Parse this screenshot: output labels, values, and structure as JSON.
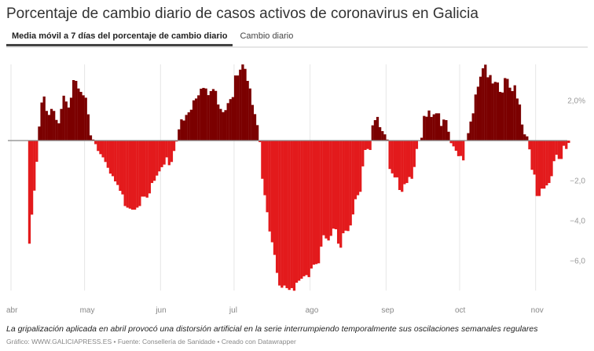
{
  "header": {
    "title": "Porcentaje de cambio diario de casos activos de coronavirus en Galicia"
  },
  "tabs": [
    {
      "label": "Media móvil a 7 días del porcentaje de cambio diario",
      "active": true
    },
    {
      "label": "Cambio diario",
      "active": false
    }
  ],
  "footer": {
    "note": "La gripalización aplicada en abril provocó una distorsión artificial en la serie interrumpiendo temporalmente sus oscilaciones semanales regulares",
    "credit": "Gráfico: WWW.GALICIAPRESS.ES • Fuente: Consellería de Sanidade • Creado con Datawrapper"
  },
  "chart_data": {
    "type": "bar",
    "title": "Porcentaje de cambio diario de casos activos de coronavirus en Galicia",
    "xlabel": "",
    "ylabel": "",
    "ylim": [
      -7.6,
      3.9
    ],
    "grid": {
      "x": true,
      "y": false
    },
    "colors": {
      "positive": "#7b0000",
      "negative": "#e31a1c",
      "zero_line": "#888888"
    },
    "x_ticks": [
      {
        "label": "abr",
        "date": "04-01"
      },
      {
        "label": "may",
        "date": "05-01"
      },
      {
        "label": "jun",
        "date": "06-01"
      },
      {
        "label": "jul",
        "date": "07-01"
      },
      {
        "label": "ago",
        "date": "08-01"
      },
      {
        "label": "sep",
        "date": "09-01"
      },
      {
        "label": "oct",
        "date": "10-01"
      },
      {
        "label": "nov",
        "date": "11-01"
      }
    ],
    "y_ticks": [
      {
        "value": 2,
        "label": "2,0%"
      },
      {
        "value": -2,
        "label": "−2,0"
      },
      {
        "value": -4,
        "label": "−4,0"
      },
      {
        "value": -6,
        "label": "−6,0"
      }
    ],
    "points": [
      [
        "04-08",
        -5.15
      ],
      [
        "04-09",
        -3.7
      ],
      [
        "04-10",
        -2.5
      ],
      [
        "04-11",
        -1.06
      ],
      [
        "04-12",
        0.7
      ],
      [
        "04-13",
        1.9
      ],
      [
        "04-14",
        2.2
      ],
      [
        "04-15",
        1.48
      ],
      [
        "04-16",
        1.28
      ],
      [
        "04-17",
        1.58
      ],
      [
        "04-18",
        1.48
      ],
      [
        "04-19",
        1.03
      ],
      [
        "04-20",
        0.86
      ],
      [
        "04-21",
        1.58
      ],
      [
        "04-22",
        2.24
      ],
      [
        "04-23",
        1.95
      ],
      [
        "04-24",
        1.65
      ],
      [
        "04-25",
        2.14
      ],
      [
        "04-26",
        3.02
      ],
      [
        "04-27",
        2.98
      ],
      [
        "04-28",
        2.6
      ],
      [
        "04-29",
        2.43
      ],
      [
        "04-30",
        2.26
      ],
      [
        "05-01",
        2.14
      ],
      [
        "05-02",
        1.31
      ],
      [
        "05-03",
        0.26
      ],
      [
        "05-04",
        0.05
      ],
      [
        "05-05",
        -0.18
      ],
      [
        "05-06",
        -0.52
      ],
      [
        "05-07",
        -0.68
      ],
      [
        "05-08",
        -0.84
      ],
      [
        "05-09",
        -1.07
      ],
      [
        "05-10",
        -1.36
      ],
      [
        "05-11",
        -1.65
      ],
      [
        "05-12",
        -1.78
      ],
      [
        "05-13",
        -2.04
      ],
      [
        "05-14",
        -2.22
      ],
      [
        "05-15",
        -2.51
      ],
      [
        "05-16",
        -2.69
      ],
      [
        "05-17",
        -3.27
      ],
      [
        "05-18",
        -3.35
      ],
      [
        "05-19",
        -3.4
      ],
      [
        "05-20",
        -3.45
      ],
      [
        "05-21",
        -3.45
      ],
      [
        "05-22",
        -3.35
      ],
      [
        "05-23",
        -3.27
      ],
      [
        "05-24",
        -2.8
      ],
      [
        "05-25",
        -2.8
      ],
      [
        "05-26",
        -2.85
      ],
      [
        "05-27",
        -2.64
      ],
      [
        "05-28",
        -2.12
      ],
      [
        "05-29",
        -2.01
      ],
      [
        "05-30",
        -1.75
      ],
      [
        "05-31",
        -1.54
      ],
      [
        "06-01",
        -1.33
      ],
      [
        "06-02",
        -1.2
      ],
      [
        "06-03",
        -0.84
      ],
      [
        "06-04",
        -1.23
      ],
      [
        "06-05",
        -1.07
      ],
      [
        "06-06",
        -0.52
      ],
      [
        "06-07",
        -0.05
      ],
      [
        "06-08",
        0.56
      ],
      [
        "06-09",
        1.06
      ],
      [
        "06-10",
        1.0
      ],
      [
        "06-11",
        1.28
      ],
      [
        "06-12",
        1.41
      ],
      [
        "06-13",
        1.54
      ],
      [
        "06-14",
        2.01
      ],
      [
        "06-15",
        2.1
      ],
      [
        "06-16",
        2.26
      ],
      [
        "06-17",
        2.59
      ],
      [
        "06-18",
        2.63
      ],
      [
        "06-19",
        2.6
      ],
      [
        "06-20",
        2.27
      ],
      [
        "06-21",
        2.47
      ],
      [
        "06-22",
        2.57
      ],
      [
        "06-23",
        2.48
      ],
      [
        "06-24",
        1.8
      ],
      [
        "06-25",
        1.58
      ],
      [
        "06-26",
        1.42
      ],
      [
        "06-27",
        1.52
      ],
      [
        "06-28",
        1.87
      ],
      [
        "06-29",
        2.07
      ],
      [
        "06-30",
        2.17
      ],
      [
        "07-01",
        3.25
      ],
      [
        "07-02",
        3.25
      ],
      [
        "07-03",
        3.54
      ],
      [
        "07-04",
        3.8
      ],
      [
        "07-05",
        3.58
      ],
      [
        "07-06",
        2.98
      ],
      [
        "07-07",
        2.6
      ],
      [
        "07-08",
        1.78
      ],
      [
        "07-09",
        1.32
      ],
      [
        "07-10",
        0.77
      ],
      [
        "07-11",
        -0.08
      ],
      [
        "07-12",
        -1.91
      ],
      [
        "07-13",
        -2.73
      ],
      [
        "07-14",
        -3.58
      ],
      [
        "07-15",
        -4.54
      ],
      [
        "07-16",
        -5.08
      ],
      [
        "07-17",
        -5.71
      ],
      [
        "07-18",
        -6.61
      ],
      [
        "07-19",
        -7.24
      ],
      [
        "07-20",
        -7.35
      ],
      [
        "07-21",
        -7.24
      ],
      [
        "07-22",
        -7.37
      ],
      [
        "07-23",
        -7.46
      ],
      [
        "07-24",
        -7.37
      ],
      [
        "07-25",
        -7.5
      ],
      [
        "07-26",
        -7.1
      ],
      [
        "07-27",
        -7.0
      ],
      [
        "07-28",
        -6.9
      ],
      [
        "07-29",
        -6.78
      ],
      [
        "07-30",
        -6.72
      ],
      [
        "07-31",
        -6.82
      ],
      [
        "08-01",
        -6.39
      ],
      [
        "08-02",
        -6.2
      ],
      [
        "08-03",
        -6.17
      ],
      [
        "08-04",
        -6.13
      ],
      [
        "08-05",
        -5.3
      ],
      [
        "08-06",
        -4.73
      ],
      [
        "08-07",
        -4.89
      ],
      [
        "08-08",
        -4.99
      ],
      [
        "08-09",
        -4.76
      ],
      [
        "08-10",
        -4.4
      ],
      [
        "08-11",
        -4.43
      ],
      [
        "08-12",
        -5.15
      ],
      [
        "08-13",
        -5.35
      ],
      [
        "08-14",
        -4.63
      ],
      [
        "08-15",
        -4.5
      ],
      [
        "08-16",
        -4.52
      ],
      [
        "08-17",
        -4.24
      ],
      [
        "08-18",
        -3.69
      ],
      [
        "08-19",
        -2.93
      ],
      [
        "08-20",
        -2.73
      ],
      [
        "08-21",
        -2.56
      ],
      [
        "08-22",
        -1.29
      ],
      [
        "08-23",
        -0.47
      ],
      [
        "08-24",
        -0.42
      ],
      [
        "08-25",
        -0.47
      ],
      [
        "08-26",
        0.76
      ],
      [
        "08-27",
        1.02
      ],
      [
        "08-28",
        1.18
      ],
      [
        "08-29",
        0.67
      ],
      [
        "08-30",
        0.47
      ],
      [
        "08-31",
        0.31
      ],
      [
        "09-01",
        0.05
      ],
      [
        "09-02",
        -1.42
      ],
      [
        "09-03",
        -1.64
      ],
      [
        "09-04",
        -1.84
      ],
      [
        "09-05",
        -1.84
      ],
      [
        "09-06",
        -2.47
      ],
      [
        "09-07",
        -2.56
      ],
      [
        "09-08",
        -2.18
      ],
      [
        "09-09",
        -2.12
      ],
      [
        "09-10",
        -1.82
      ],
      [
        "09-11",
        -1.91
      ],
      [
        "09-12",
        -1.32
      ],
      [
        "09-13",
        -0.42
      ],
      [
        "09-14",
        -0.02
      ],
      [
        "09-15",
        0.14
      ],
      [
        "09-16",
        1.23
      ],
      [
        "09-17",
        1.19
      ],
      [
        "09-18",
        1.5
      ],
      [
        "09-19",
        1.18
      ],
      [
        "09-20",
        1.31
      ],
      [
        "09-21",
        1.36
      ],
      [
        "09-22",
        1.36
      ],
      [
        "09-23",
        0.73
      ],
      [
        "09-24",
        1.05
      ],
      [
        "09-25",
        1.02
      ],
      [
        "09-26",
        0.44
      ],
      [
        "09-27",
        -0.13
      ],
      [
        "09-28",
        -0.29
      ],
      [
        "09-29",
        -0.51
      ],
      [
        "09-30",
        -0.78
      ],
      [
        "10-01",
        -0.77
      ],
      [
        "10-02",
        -0.99
      ],
      [
        "10-03",
        0.02
      ],
      [
        "10-04",
        0.37
      ],
      [
        "10-05",
        0.95
      ],
      [
        "10-06",
        1.36
      ],
      [
        "10-07",
        2.3
      ],
      [
        "10-08",
        2.69
      ],
      [
        "10-09",
        3.19
      ],
      [
        "10-10",
        3.61
      ],
      [
        "10-11",
        3.79
      ],
      [
        "10-12",
        3.16
      ],
      [
        "10-13",
        3.27
      ],
      [
        "10-14",
        2.85
      ],
      [
        "10-15",
        2.93
      ],
      [
        "10-16",
        2.9
      ],
      [
        "10-17",
        2.43
      ],
      [
        "10-18",
        2.4
      ],
      [
        "10-19",
        3.12
      ],
      [
        "10-20",
        3.08
      ],
      [
        "10-21",
        2.64
      ],
      [
        "10-22",
        2.47
      ],
      [
        "10-23",
        2.76
      ],
      [
        "10-24",
        2.1
      ],
      [
        "10-25",
        1.8
      ],
      [
        "10-26",
        0.8
      ],
      [
        "10-27",
        0.31
      ],
      [
        "10-28",
        0.21
      ],
      [
        "10-29",
        -0.44
      ],
      [
        "10-30",
        -1.46
      ],
      [
        "10-31",
        -1.7
      ],
      [
        "11-01",
        -2.77
      ],
      [
        "11-02",
        -2.77
      ],
      [
        "11-03",
        -2.4
      ],
      [
        "11-04",
        -2.4
      ],
      [
        "11-05",
        -2.24
      ],
      [
        "11-06",
        -2.12
      ],
      [
        "11-07",
        -1.78
      ],
      [
        "11-08",
        -1.03
      ],
      [
        "11-09",
        -0.71
      ],
      [
        "11-10",
        -0.92
      ],
      [
        "11-11",
        -0.92
      ],
      [
        "11-12",
        -0.26
      ],
      [
        "11-13",
        -0.42
      ],
      [
        "11-14",
        -0.12
      ]
    ]
  }
}
